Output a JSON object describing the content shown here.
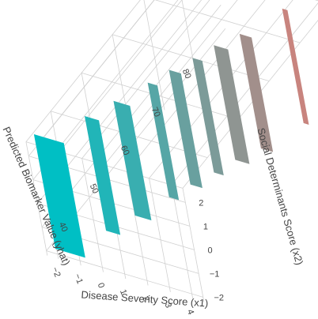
{
  "chart_data": {
    "type": "surface",
    "colors": {
      "low": "#00bfc4",
      "high": "#f8766d",
      "grid": "#d0d0d0"
    },
    "axes": {
      "x": {
        "label": "Disease Severity Score (x1)",
        "ticks": [
          "−2",
          "−1",
          "0",
          "1",
          "2",
          "3",
          "4"
        ],
        "range": [
          -2.5,
          4.5
        ]
      },
      "y": {
        "label": "Social Determinants Score (x2)",
        "ticks": [
          "−2",
          "−1",
          "0",
          "1",
          "2"
        ],
        "range": [
          -2.2,
          2.6
        ]
      },
      "z": {
        "label": "Predicted Biomarker Value (yhat)",
        "ticks": [
          "40",
          "50",
          "60",
          "70",
          "80"
        ],
        "range": [
          32,
          90
        ]
      }
    },
    "steps": [
      {
        "x_from": -2.4,
        "x_to": -1.1,
        "yhat": 34
      },
      {
        "x_from": -1.1,
        "x_to": -0.5,
        "yhat": 41
      },
      {
        "x_from": -0.5,
        "x_to": 0.2,
        "yhat": 46
      },
      {
        "x_from": 0.2,
        "x_to": 0.6,
        "yhat": 52
      },
      {
        "x_from": 0.6,
        "x_to": 1.1,
        "yhat": 56
      },
      {
        "x_from": 1.1,
        "x_to": 1.5,
        "yhat": 60
      },
      {
        "x_from": 1.5,
        "x_to": 2.1,
        "yhat": 64
      },
      {
        "x_from": 2.1,
        "x_to": 2.6,
        "yhat": 68
      },
      {
        "x_from": 2.9,
        "x_to": 3.1,
        "yhat": 76
      },
      {
        "x_from": 3.3,
        "x_to": 4.3,
        "yhat": 86
      }
    ]
  }
}
